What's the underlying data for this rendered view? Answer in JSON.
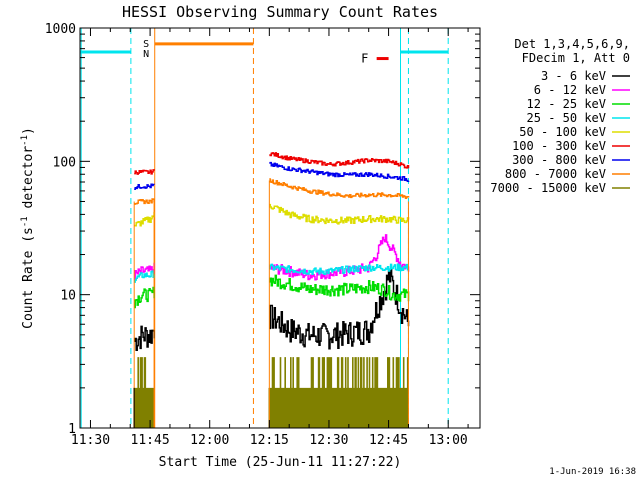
{
  "chart_data": {
    "type": "line",
    "title": "HESSI Observing Summary Count Rates",
    "xlabel": "Start Time (25-Jun-11 11:27:22)",
    "ylabel": "Count Rate (s⁻¹ detector⁻¹)",
    "ylabel_main": "Count Rate (s",
    "ylabel_mid": " detector",
    "ylabel_end": ")",
    "ylabel_sup": "-1",
    "footer": "1-Jun-2019 16:38",
    "x_range": [
      "11:27:22",
      "13:08"
    ],
    "y_range": [
      1,
      1000
    ],
    "y_scale": "log",
    "grid": false,
    "legend_placement": "top-right",
    "x_ticks": [
      "11:30",
      "11:45",
      "12:00",
      "12:15",
      "12:30",
      "12:45",
      "13:00"
    ],
    "y_ticks": [
      "1",
      "10",
      "100",
      "1000"
    ],
    "legend": {
      "header1": "Det 1,3,4,5,6,9,",
      "header2": "FDecim 1, Att 0"
    },
    "series": [
      {
        "name": "3 - 6 keV",
        "color": "#000000",
        "seg1": {
          "t": [
            "11:41",
            "11:43",
            "11:45",
            "11:46"
          ],
          "y": [
            4.5,
            5.0,
            5.0,
            5.5
          ]
        },
        "seg2": {
          "t": [
            "12:15",
            "12:20",
            "12:25",
            "12:30",
            "12:35",
            "12:40",
            "12:42",
            "12:44",
            "12:45",
            "12:48",
            "12:50"
          ],
          "y": [
            7.0,
            5.5,
            5.0,
            5.0,
            5.2,
            5.5,
            8.0,
            11.0,
            14.0,
            8.0,
            6.0
          ]
        }
      },
      {
        "name": "6 - 12 keV",
        "color": "#ff00ff",
        "seg1": {
          "t": [
            "11:41",
            "11:43",
            "11:45",
            "11:46"
          ],
          "y": [
            14,
            15,
            15,
            16
          ]
        },
        "seg2": {
          "t": [
            "12:15",
            "12:20",
            "12:25",
            "12:30",
            "12:35",
            "12:40",
            "12:42",
            "12:44",
            "12:45",
            "12:48",
            "12:50"
          ],
          "y": [
            16,
            15,
            14,
            14.5,
            15,
            16,
            20,
            27,
            24,
            17,
            16
          ]
        }
      },
      {
        "name": "12 - 25 keV",
        "color": "#00dd00",
        "seg1": {
          "t": [
            "11:41",
            "11:43",
            "11:45",
            "11:46"
          ],
          "y": [
            9,
            10,
            10,
            10.5
          ]
        },
        "seg2": {
          "t": [
            "12:15",
            "12:20",
            "12:25",
            "12:30",
            "12:35",
            "12:40",
            "12:44",
            "12:46",
            "12:48",
            "12:50"
          ],
          "y": [
            13,
            12,
            11,
            11,
            11,
            11.5,
            11,
            10,
            10,
            10
          ]
        }
      },
      {
        "name": "25 - 50 keV",
        "color": "#00e5ee",
        "seg1": {
          "t": [
            "11:41",
            "11:43",
            "11:45",
            "11:46"
          ],
          "y": [
            13,
            14,
            14,
            14.5
          ]
        },
        "seg2": {
          "t": [
            "12:15",
            "12:20",
            "12:25",
            "12:30",
            "12:35",
            "12:40",
            "12:45",
            "12:48",
            "12:50"
          ],
          "y": [
            16,
            15.5,
            15,
            15,
            15.5,
            16,
            16,
            16,
            16
          ]
        }
      },
      {
        "name": "50 - 100 keV",
        "color": "#dddd00",
        "seg1": {
          "t": [
            "11:41",
            "11:43",
            "11:45",
            "11:46"
          ],
          "y": [
            33,
            35,
            37,
            40
          ]
        },
        "seg2": {
          "t": [
            "12:15",
            "12:20",
            "12:25",
            "12:30",
            "12:35",
            "12:40",
            "12:45",
            "12:48",
            "12:50"
          ],
          "y": [
            47,
            40,
            37,
            36,
            36,
            37,
            37,
            36,
            36
          ]
        }
      },
      {
        "name": "100 - 300 keV",
        "color": "#ee0000",
        "seg1": {
          "t": [
            "11:41",
            "11:43",
            "11:45",
            "11:46"
          ],
          "y": [
            83,
            83,
            83,
            84
          ]
        },
        "seg2": {
          "t": [
            "12:15",
            "12:20",
            "12:25",
            "12:30",
            "12:35",
            "12:40",
            "12:45",
            "12:48",
            "12:50"
          ],
          "y": [
            115,
            105,
            100,
            95,
            98,
            102,
            100,
            95,
            90
          ]
        }
      },
      {
        "name": "300 - 800 keV",
        "color": "#0000ee",
        "seg1": {
          "t": [
            "11:41",
            "11:43",
            "11:45",
            "11:46"
          ],
          "y": [
            64,
            65,
            65,
            66
          ]
        },
        "seg2": {
          "t": [
            "12:15",
            "12:20",
            "12:25",
            "12:30",
            "12:35",
            "12:40",
            "12:45",
            "12:48",
            "12:50"
          ],
          "y": [
            95,
            88,
            84,
            80,
            79,
            80,
            77,
            75,
            73
          ]
        }
      },
      {
        "name": "800 - 7000 keV",
        "color": "#ff7f00",
        "seg1": {
          "t": [
            "11:41",
            "11:43",
            "11:45",
            "11:46"
          ],
          "y": [
            49,
            50,
            50,
            51
          ]
        },
        "seg2": {
          "t": [
            "12:15",
            "12:20",
            "12:25",
            "12:30",
            "12:35",
            "12:40",
            "12:45",
            "12:48",
            "12:50"
          ],
          "y": [
            72,
            65,
            60,
            57,
            55,
            56,
            56,
            55,
            54
          ]
        }
      },
      {
        "name": "7000 - 15000 keV",
        "color": "#808000",
        "seg1": {
          "t": [
            "11:41",
            "11:46"
          ],
          "y": [
            2,
            2
          ]
        },
        "seg2": {
          "t": [
            "12:15",
            "12:50"
          ],
          "y": [
            2,
            2
          ]
        }
      }
    ],
    "annotations": [
      {
        "label": "S",
        "color": "#ff7f00"
      },
      {
        "label": "N",
        "color": "#00e5ee"
      },
      {
        "label": "F",
        "color": "#ee0000"
      }
    ],
    "flags": {
      "saa_color": "#ff7f00",
      "night_color": "#00e5ee",
      "flare_color": "#ee0000"
    }
  }
}
